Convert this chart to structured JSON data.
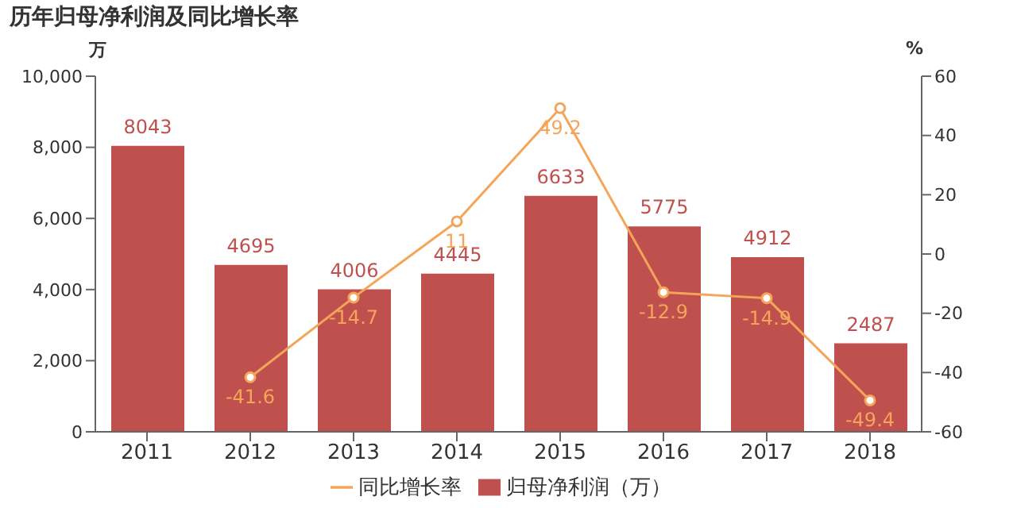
{
  "chart_data": {
    "type": "bar",
    "title": "历年归母净利润及同比增长率",
    "ylabel": "万",
    "y2label": "%",
    "categories": [
      "2011",
      "2012",
      "2013",
      "2014",
      "2015",
      "2016",
      "2017",
      "2018"
    ],
    "series": [
      {
        "name": "归母净利润（万）",
        "color": "#c0504d",
        "values": [
          8043,
          4695,
          4006,
          4445,
          6633,
          5775,
          4912,
          2487
        ]
      },
      {
        "name": "同比增长率",
        "type": "line",
        "axis": "y2",
        "color": "#f5a55a",
        "marker": "circle",
        "values": [
          null,
          -41.6,
          -14.7,
          11,
          49.2,
          -12.9,
          -14.9,
          -49.4
        ]
      }
    ],
    "ylim": [
      0,
      10000
    ],
    "yticks": [
      0,
      {
        "value": 2000,
        "label": "2,000"
      },
      {
        "value": 4000,
        "label": "4,000"
      },
      {
        "value": 6000,
        "label": "6,000"
      },
      {
        "value": 8000,
        "label": "8,000"
      },
      {
        "value": 10000,
        "label": "10,000"
      }
    ],
    "y2lim": [
      -60,
      60
    ],
    "y2ticks": [
      -60,
      -40,
      -20,
      0,
      20,
      40,
      60
    ],
    "data_labels": true,
    "grid": false,
    "legend": "bottom"
  }
}
